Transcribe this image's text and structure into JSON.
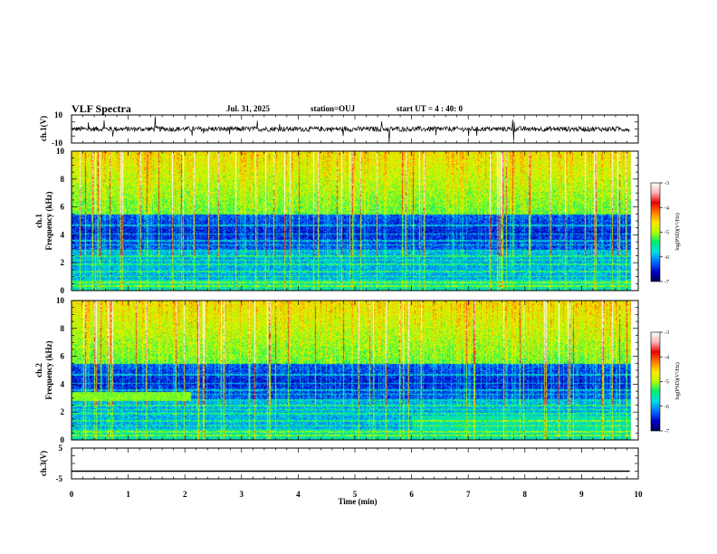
{
  "chart_data": {
    "type": "heatmap",
    "title": "VLF Spectra",
    "date": "Jul. 31, 2025",
    "station": "station=OUJ",
    "start_ut": "start UT =  4 : 40: 0",
    "xlabel": "Time (min)",
    "x_ticks": [
      "0",
      "1",
      "2",
      "3",
      "4",
      "5",
      "6",
      "7",
      "8",
      "9",
      "10"
    ],
    "xlim": [
      0,
      10
    ],
    "data_end_min": 9.85,
    "panels": {
      "ch1_waveform": {
        "ylabel": "ch.1(V)",
        "ylim": [
          -10,
          10
        ],
        "y_ticks": [
          "10",
          "-10"
        ],
        "baseline": 0,
        "noise_amplitude": 1.8
      },
      "ch1_spectrogram": {
        "ylabel_top": "ch.1",
        "ylabel": "Frequency (kHz)",
        "ylim": [
          0,
          10
        ],
        "y_ticks": [
          "0",
          "2",
          "4",
          "6",
          "8",
          "10"
        ]
      },
      "ch2_spectrogram": {
        "ylabel_top": "ch.2",
        "ylabel": "Frequency (kHz)",
        "ylim": [
          0,
          10
        ],
        "y_ticks": [
          "0",
          "2",
          "4",
          "6",
          "8",
          "10"
        ],
        "band_3khz_end_min": 2.1
      },
      "ch3_waveform": {
        "ylabel": "ch.3(V)",
        "ylim": [
          -5,
          5
        ],
        "y_ticks": [
          "5",
          "-5"
        ],
        "baseline": -2.5
      }
    },
    "colorbar": {
      "title": "log(PSD)(V²/Hz)",
      "range": [
        -7,
        -3
      ],
      "ticks": [
        "-3",
        "-4",
        "-5",
        "-6",
        "-7"
      ],
      "colors": [
        "#000050",
        "#0000cc",
        "#0070ff",
        "#00e0e0",
        "#00ee70",
        "#b4ff00",
        "#ffe600",
        "#ff7800",
        "#e80000",
        "#ffb4b4",
        "#ffffff"
      ]
    }
  }
}
